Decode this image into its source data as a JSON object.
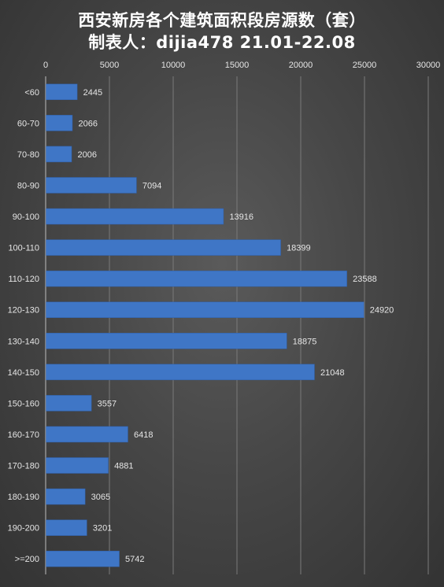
{
  "chart_data": {
    "type": "bar",
    "orientation": "horizontal",
    "title_lines": [
      "西安新房各个建筑面积段房源数（套）",
      "制表人：dijia478 21.01-22.08"
    ],
    "xlabel": "",
    "ylabel": "",
    "xlim": [
      0,
      30000
    ],
    "x_ticks": [
      "0",
      "5000",
      "10000",
      "15000",
      "20000",
      "25000",
      "30000"
    ],
    "x_axis_position": "top",
    "grid": true,
    "legend": "none",
    "bar_color": "#3f76c6",
    "categories": [
      "<60",
      "60-70",
      "70-80",
      "80-90",
      "90-100",
      "100-110",
      "110-120",
      "120-130",
      "130-140",
      "140-150",
      "150-160",
      "160-170",
      "170-180",
      "180-190",
      "190-200",
      ">=200"
    ],
    "values": [
      2445,
      2066,
      2006,
      7094,
      13916,
      18399,
      23588,
      24920,
      18875,
      21048,
      3557,
      6418,
      4881,
      3065,
      3201,
      5742
    ]
  }
}
